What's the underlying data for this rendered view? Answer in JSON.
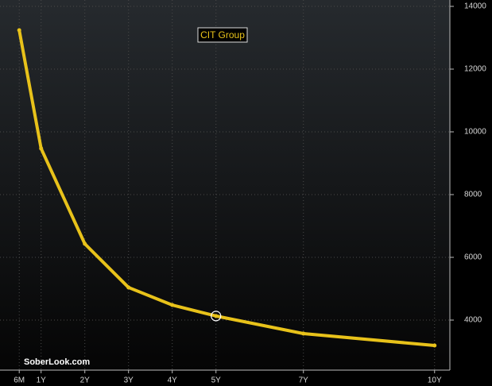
{
  "chart_data": {
    "type": "line",
    "series": [
      {
        "name": "CIT Group",
        "color": "#e8c21a",
        "values": [
          13240,
          9470,
          6430,
          5040,
          4480,
          4130,
          3570,
          3190
        ]
      }
    ],
    "x": [
      0.5,
      1,
      2,
      3,
      4,
      5,
      7,
      10
    ],
    "xlim": [
      0.06,
      10.35
    ],
    "xticks": [
      {
        "value": 0.5,
        "label": "6M"
      },
      {
        "value": 1,
        "label": "1Y"
      },
      {
        "value": 2,
        "label": "2Y"
      },
      {
        "value": 3,
        "label": "3Y"
      },
      {
        "value": 4,
        "label": "4Y"
      },
      {
        "value": 5,
        "label": "5Y"
      },
      {
        "value": 7,
        "label": "7Y"
      },
      {
        "value": 10,
        "label": "10Y"
      }
    ],
    "ylim": [
      2405,
      14203
    ],
    "yticks": [
      4000,
      6000,
      8000,
      10000,
      12000,
      14000
    ],
    "y_axis_side": "right",
    "grid": true,
    "highlight_x": 5,
    "annotation": "SoberLook.com"
  }
}
